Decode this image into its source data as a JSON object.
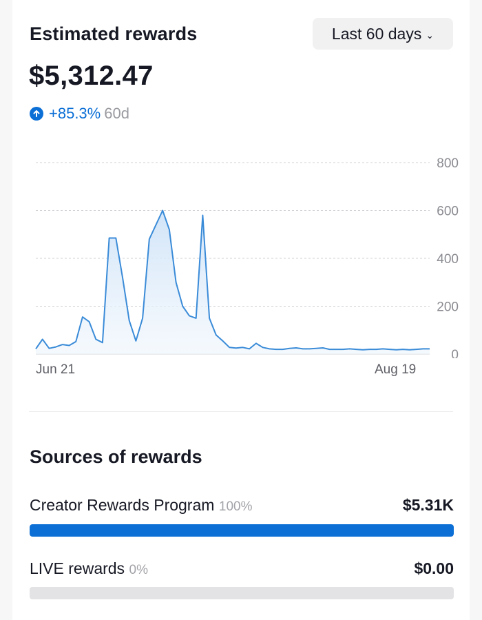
{
  "header": {
    "title": "Estimated rewards",
    "range_label": "Last 60 days",
    "amount": "$5,312.47",
    "change_pct": "+85.3%",
    "change_period": "60d"
  },
  "colors": {
    "accent": "#0b6fd6",
    "line": "#3a8bd8",
    "track": "#e3e3e5"
  },
  "chart_data": {
    "type": "area",
    "x_start_label": "Jun 21",
    "x_end_label": "Aug 19",
    "yticks": [
      "800",
      "600",
      "400",
      "200",
      "0"
    ],
    "ylim": [
      0,
      800
    ],
    "grid": true,
    "values": [
      22,
      62,
      24,
      30,
      40,
      36,
      52,
      155,
      135,
      62,
      48,
      485,
      485,
      320,
      140,
      55,
      150,
      480,
      540,
      600,
      520,
      300,
      200,
      160,
      150,
      580,
      150,
      80,
      55,
      28,
      25,
      28,
      22,
      45,
      28,
      22,
      20,
      20,
      24,
      26,
      22,
      22,
      24,
      26,
      20,
      20,
      20,
      22,
      20,
      18,
      20,
      20,
      22,
      20,
      18,
      20,
      18,
      20,
      22,
      22
    ]
  },
  "sources": {
    "title": "Sources of rewards",
    "items": [
      {
        "name": "Creator Rewards Program",
        "share": "100%",
        "value": "$5.31K",
        "fraction": 1.0
      },
      {
        "name": "LIVE rewards",
        "share": "0%",
        "value": "$0.00",
        "fraction": 0.0
      }
    ]
  }
}
